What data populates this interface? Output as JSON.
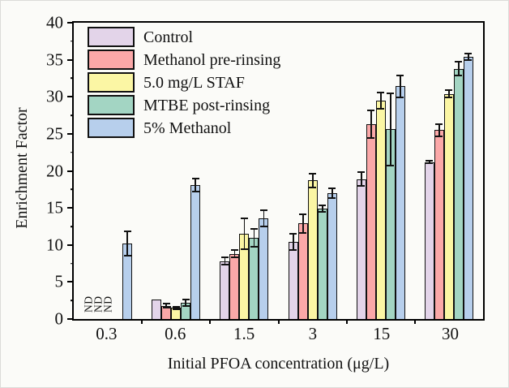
{
  "chart_data": {
    "type": "bar",
    "title": "",
    "xlabel": "Initial PFOA concentration (μg/L)",
    "ylabel": "Enrichment Factor",
    "ylim": [
      0,
      40
    ],
    "yticks": [
      0,
      5,
      10,
      15,
      20,
      25,
      30,
      35,
      40
    ],
    "minor_tick_step": 2.5,
    "grid": false,
    "legend_position": "top-left",
    "nd_label": "ND",
    "categories": [
      "0.3",
      "0.6",
      "1.5",
      "3",
      "15",
      "30"
    ],
    "series": [
      {
        "name": "Control",
        "color": "#e3d4e9",
        "values": [
          null,
          2.6,
          7.8,
          10.4,
          18.9,
          21.2
        ],
        "errors": [
          null,
          0,
          0.6,
          1.2,
          1.0,
          0.3
        ],
        "nd": [
          true,
          false,
          false,
          false,
          false,
          false
        ]
      },
      {
        "name": "Methanol pre-rinsing",
        "color": "#fba8a8",
        "values": [
          null,
          1.8,
          8.8,
          12.9,
          26.3,
          25.5
        ],
        "errors": [
          null,
          0.4,
          0.6,
          1.4,
          2.0,
          0.9
        ],
        "nd": [
          true,
          false,
          false,
          false,
          false,
          false
        ]
      },
      {
        "name": "5.0 mg/L STAF",
        "color": "#fbf6a4",
        "values": [
          null,
          1.5,
          11.5,
          18.7,
          29.5,
          30.4
        ],
        "errors": [
          null,
          0.3,
          2.2,
          1.0,
          1.2,
          0.6
        ],
        "nd": [
          true,
          false,
          false,
          false,
          false,
          false
        ]
      },
      {
        "name": "MTBE post-rinsing",
        "color": "#a3d5c3",
        "values": [
          null,
          2.2,
          11.0,
          14.9,
          25.6,
          33.8
        ],
        "errors": [
          null,
          0.5,
          1.3,
          0.5,
          5.0,
          1.0
        ],
        "nd": [
          false,
          false,
          false,
          false,
          false,
          false
        ]
      },
      {
        "name": "5% Methanol",
        "color": "#b7cfec",
        "values": [
          10.2,
          18.1,
          13.6,
          17.0,
          31.4,
          35.4
        ],
        "errors": [
          1.8,
          1.0,
          1.2,
          0.8,
          1.6,
          0.6
        ],
        "nd": [
          false,
          false,
          false,
          false,
          false,
          false
        ]
      }
    ]
  }
}
